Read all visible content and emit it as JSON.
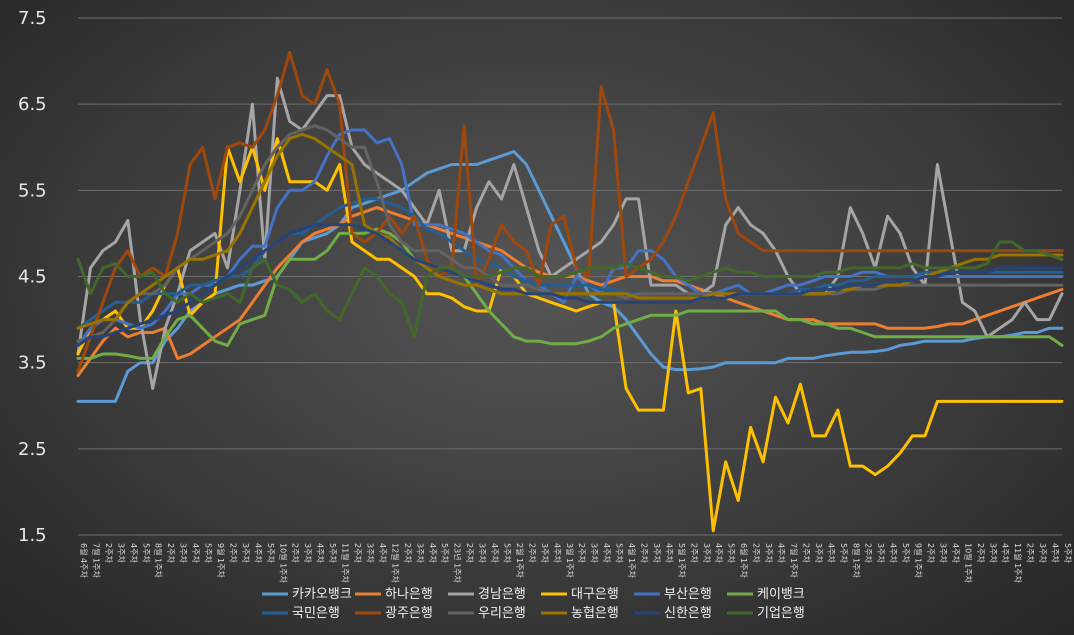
{
  "chart_data": {
    "type": "line",
    "title": "",
    "xlabel": "",
    "ylabel": "",
    "ylim": [
      1.5,
      7.5
    ],
    "yticks": [
      1.5,
      2.5,
      3.5,
      4.5,
      5.5,
      6.5,
      7.5
    ],
    "grid": true,
    "legend_position": "bottom",
    "x_labels": [
      "6월 4주차",
      "7월 1주차",
      "2주차",
      "3주차",
      "4주차",
      "5주차",
      "8월 1주차",
      "2주차",
      "3주차",
      "4주차",
      "5주차",
      "9월 1주차",
      "2주차",
      "3주차",
      "4주차",
      "5주차",
      "10월 1주차",
      "2주차",
      "3주차",
      "4주차",
      "5주차",
      "11월 1주차",
      "2주차",
      "3주차",
      "4주차",
      "12월 1주차",
      "2주차",
      "3주차",
      "4주차",
      "5주차",
      "23년 1주차",
      "2주차",
      "3주차",
      "4주차",
      "5주차",
      "2월 1주차",
      "2주차",
      "3주차",
      "4주차",
      "3월 1주차",
      "2주차",
      "3주차",
      "4주차",
      "5주차",
      "4월 1주차",
      "2주차",
      "3주차",
      "4주차",
      "5월 1주차",
      "2주차",
      "3주차",
      "4주차",
      "5주차",
      "6월 1주차",
      "2주차",
      "3주차",
      "4주차",
      "7월 1주차",
      "2주차",
      "3주차",
      "4주차",
      "5주차",
      "8월 1주차",
      "2주차",
      "3주차",
      "4주차",
      "5주차",
      "9월 1주차",
      "2주차",
      "3주차",
      "4주차",
      "10월 1주차",
      "2주차",
      "3주차",
      "4주차",
      "11월 1주차",
      "2주차",
      "3주차",
      "4주차",
      "5주차"
    ],
    "series": [
      {
        "name": "카카오뱅크",
        "color": "#5b9bd5",
        "values": [
          3.05,
          3.05,
          3.05,
          3.05,
          3.4,
          3.5,
          3.5,
          3.75,
          3.9,
          4.1,
          4.2,
          4.3,
          4.35,
          4.4,
          4.4,
          4.45,
          4.5,
          4.7,
          4.9,
          4.95,
          5.0,
          5.1,
          5.3,
          5.35,
          5.4,
          5.45,
          5.5,
          5.6,
          5.7,
          5.75,
          5.8,
          5.8,
          5.8,
          5.85,
          5.9,
          5.95,
          5.8,
          5.5,
          5.2,
          4.9,
          4.6,
          4.3,
          4.2,
          4.15,
          4.0,
          3.8,
          3.6,
          3.45,
          3.42,
          3.42,
          3.43,
          3.45,
          3.5,
          3.5,
          3.5,
          3.5,
          3.5,
          3.55,
          3.55,
          3.55,
          3.58,
          3.6,
          3.62,
          3.62,
          3.63,
          3.65,
          3.7,
          3.72,
          3.75,
          3.75,
          3.75,
          3.75,
          3.78,
          3.8,
          3.8,
          3.82,
          3.85,
          3.85,
          3.9,
          3.9
        ]
      },
      {
        "name": "하나은행",
        "color": "#ed7d31",
        "values": [
          3.35,
          3.55,
          3.75,
          3.9,
          3.8,
          3.85,
          3.85,
          3.9,
          3.55,
          3.6,
          3.7,
          3.8,
          3.9,
          4.0,
          4.2,
          4.4,
          4.6,
          4.75,
          4.9,
          5.0,
          5.05,
          5.1,
          5.2,
          5.25,
          5.3,
          5.25,
          5.2,
          5.15,
          5.1,
          5.05,
          5.0,
          4.95,
          4.9,
          4.85,
          4.8,
          4.7,
          4.6,
          4.55,
          4.5,
          4.5,
          4.5,
          4.45,
          4.4,
          4.45,
          4.5,
          4.5,
          4.5,
          4.45,
          4.45,
          4.4,
          4.35,
          4.3,
          4.25,
          4.2,
          4.15,
          4.1,
          4.05,
          4.0,
          4.0,
          4.0,
          3.95,
          3.95,
          3.95,
          3.95,
          3.95,
          3.9,
          3.9,
          3.9,
          3.9,
          3.92,
          3.95,
          3.95,
          4.0,
          4.05,
          4.1,
          4.15,
          4.2,
          4.25,
          4.3,
          4.35
        ]
      },
      {
        "name": "경남은행",
        "color": "#a5a5a5",
        "values": [
          3.6,
          4.6,
          4.8,
          4.9,
          5.15,
          4.0,
          3.2,
          3.9,
          4.3,
          4.8,
          4.9,
          5.0,
          4.6,
          5.5,
          6.5,
          4.7,
          6.8,
          6.3,
          6.2,
          6.4,
          6.6,
          6.6,
          6.0,
          5.8,
          5.7,
          5.6,
          5.5,
          5.3,
          5.1,
          5.5,
          4.8,
          4.8,
          5.3,
          5.6,
          5.4,
          5.8,
          5.3,
          4.8,
          4.5,
          4.6,
          4.7,
          4.8,
          4.9,
          5.1,
          5.4,
          5.4,
          4.4,
          4.4,
          4.4,
          4.3,
          4.3,
          4.4,
          5.1,
          5.3,
          5.1,
          5.0,
          4.8,
          4.5,
          4.3,
          4.3,
          4.3,
          4.5,
          5.3,
          5.0,
          4.6,
          5.2,
          5.0,
          4.6,
          4.4,
          5.8,
          5.0,
          4.2,
          4.1,
          3.8,
          3.9,
          4.0,
          4.2,
          4.0,
          4.0,
          4.3
        ]
      },
      {
        "name": "대구은행",
        "color": "#ffc000",
        "values": [
          3.6,
          3.9,
          4.0,
          4.1,
          3.9,
          3.9,
          4.1,
          4.4,
          4.6,
          4.05,
          4.2,
          4.3,
          6.0,
          5.6,
          6.0,
          5.5,
          6.1,
          5.6,
          5.6,
          5.6,
          5.5,
          5.8,
          4.9,
          4.8,
          4.7,
          4.7,
          4.6,
          4.5,
          4.3,
          4.3,
          4.25,
          4.15,
          4.1,
          4.1,
          4.6,
          4.5,
          4.3,
          4.25,
          4.2,
          4.15,
          4.1,
          4.15,
          4.2,
          4.2,
          3.2,
          2.95,
          2.95,
          2.95,
          4.1,
          3.15,
          3.2,
          1.55,
          2.35,
          1.9,
          2.75,
          2.35,
          3.1,
          2.8,
          3.25,
          2.65,
          2.65,
          2.95,
          2.3,
          2.3,
          2.2,
          2.3,
          2.45,
          2.65,
          2.65,
          3.05,
          3.05,
          3.05,
          3.05,
          3.05,
          3.05,
          3.05,
          3.05,
          3.05,
          3.05,
          3.05
        ]
      },
      {
        "name": "부산은행",
        "color": "#4472c4",
        "values": [
          3.7,
          3.9,
          4.0,
          4.0,
          3.95,
          3.9,
          3.95,
          4.1,
          4.3,
          4.3,
          4.4,
          4.4,
          4.5,
          4.7,
          4.85,
          4.85,
          5.3,
          5.5,
          5.5,
          5.6,
          5.9,
          6.15,
          6.2,
          6.2,
          6.05,
          6.1,
          5.8,
          5.1,
          5.1,
          5.1,
          5.05,
          5.0,
          4.9,
          4.8,
          4.75,
          4.6,
          4.45,
          4.4,
          4.3,
          4.2,
          4.5,
          4.4,
          4.3,
          4.6,
          4.6,
          4.8,
          4.8,
          4.7,
          4.5,
          4.4,
          4.3,
          4.3,
          4.35,
          4.4,
          4.3,
          4.3,
          4.35,
          4.4,
          4.4,
          4.45,
          4.5,
          4.5,
          4.5,
          4.55,
          4.55,
          4.5,
          4.5,
          4.5,
          4.5,
          4.5,
          4.5,
          4.5,
          4.5,
          4.5,
          4.5,
          4.5,
          4.5,
          4.5,
          4.5,
          4.5
        ]
      },
      {
        "name": "케이뱅크",
        "color": "#70ad47",
        "values": [
          3.55,
          3.55,
          3.6,
          3.6,
          3.58,
          3.55,
          3.55,
          3.8,
          4.0,
          4.05,
          3.9,
          3.75,
          3.7,
          3.95,
          4.0,
          4.05,
          4.5,
          4.7,
          4.7,
          4.7,
          4.8,
          5.0,
          5.0,
          5.0,
          5.05,
          5.0,
          4.9,
          4.7,
          4.65,
          4.6,
          4.6,
          4.5,
          4.3,
          4.1,
          3.95,
          3.8,
          3.75,
          3.75,
          3.72,
          3.72,
          3.72,
          3.75,
          3.8,
          3.9,
          3.95,
          4.0,
          4.05,
          4.05,
          4.05,
          4.1,
          4.1,
          4.1,
          4.1,
          4.1,
          4.1,
          4.1,
          4.1,
          4.0,
          4.0,
          3.95,
          3.95,
          3.9,
          3.9,
          3.85,
          3.8,
          3.8,
          3.8,
          3.8,
          3.8,
          3.8,
          3.8,
          3.8,
          3.8,
          3.8,
          3.8,
          3.8,
          3.8,
          3.8,
          3.8,
          3.7
        ]
      },
      {
        "name": "국민은행",
        "color": "#255e91",
        "values": [
          3.9,
          4.0,
          4.1,
          4.2,
          4.2,
          4.2,
          4.3,
          4.3,
          4.3,
          4.4,
          4.4,
          4.45,
          4.5,
          4.5,
          4.6,
          4.8,
          4.9,
          5.0,
          5.0,
          5.1,
          5.2,
          5.3,
          5.35,
          5.4,
          5.4,
          5.35,
          5.3,
          5.2,
          5.05,
          5.0,
          4.9,
          4.8,
          4.7,
          4.65,
          4.6,
          4.5,
          4.45,
          4.4,
          4.4,
          4.4,
          4.4,
          4.4,
          4.35,
          4.35,
          4.3,
          4.3,
          4.3,
          4.3,
          4.3,
          4.3,
          4.3,
          4.3,
          4.3,
          4.3,
          4.3,
          4.3,
          4.3,
          4.3,
          4.35,
          4.35,
          4.4,
          4.4,
          4.45,
          4.45,
          4.5,
          4.5,
          4.5,
          4.5,
          4.55,
          4.55,
          4.55,
          4.55,
          4.55,
          4.55,
          4.55,
          4.55,
          4.55,
          4.55,
          4.55,
          4.55
        ]
      },
      {
        "name": "광주은행",
        "color": "#9e480e",
        "values": [
          3.4,
          3.8,
          4.2,
          4.6,
          4.8,
          4.5,
          4.6,
          4.5,
          5.0,
          5.8,
          6.0,
          5.4,
          6.0,
          6.05,
          6.0,
          6.2,
          6.6,
          7.1,
          6.6,
          6.5,
          6.9,
          6.5,
          5.0,
          4.9,
          5.0,
          5.2,
          5.0,
          5.2,
          4.7,
          4.5,
          4.6,
          6.25,
          4.4,
          4.7,
          5.1,
          4.9,
          4.8,
          4.4,
          5.1,
          5.2,
          4.6,
          4.5,
          6.7,
          6.2,
          4.5,
          4.6,
          4.7,
          4.9,
          5.2,
          5.6,
          6.0,
          6.4,
          5.4,
          5.0,
          4.9,
          4.8,
          4.8,
          4.8,
          4.8,
          4.8,
          4.8,
          4.8,
          4.8,
          4.8,
          4.8,
          4.8,
          4.8,
          4.8,
          4.8,
          4.8,
          4.8,
          4.8,
          4.8,
          4.8,
          4.8,
          4.8,
          4.8,
          4.8,
          4.8,
          4.8
        ]
      },
      {
        "name": "우리은행",
        "color": "#636363",
        "values": [
          3.75,
          3.8,
          3.85,
          4.0,
          4.2,
          4.3,
          4.3,
          4.4,
          4.6,
          4.7,
          4.8,
          4.9,
          5.0,
          5.2,
          5.5,
          5.8,
          6.0,
          6.15,
          6.2,
          6.25,
          6.2,
          6.1,
          6.0,
          6.0,
          5.6,
          5.1,
          4.9,
          4.8,
          4.8,
          4.8,
          4.7,
          4.6,
          4.6,
          4.5,
          4.4,
          4.4,
          4.4,
          4.35,
          4.3,
          4.3,
          4.3,
          4.3,
          4.3,
          4.3,
          4.25,
          4.3,
          4.3,
          4.3,
          4.3,
          4.3,
          4.3,
          4.3,
          4.3,
          4.3,
          4.3,
          4.3,
          4.3,
          4.3,
          4.3,
          4.3,
          4.3,
          4.3,
          4.35,
          4.35,
          4.35,
          4.4,
          4.4,
          4.4,
          4.4,
          4.4,
          4.4,
          4.4,
          4.4,
          4.4,
          4.4,
          4.4,
          4.4,
          4.4,
          4.4,
          4.4
        ]
      },
      {
        "name": "농협은행",
        "color": "#997300",
        "values": [
          3.9,
          3.95,
          4.0,
          4.0,
          4.2,
          4.3,
          4.4,
          4.5,
          4.6,
          4.7,
          4.7,
          4.75,
          4.8,
          5.0,
          5.3,
          5.6,
          5.9,
          6.1,
          6.15,
          6.1,
          6.0,
          5.9,
          5.8,
          5.1,
          5.0,
          4.95,
          4.8,
          4.7,
          4.6,
          4.5,
          4.45,
          4.4,
          4.4,
          4.35,
          4.3,
          4.3,
          4.3,
          4.3,
          4.3,
          4.3,
          4.3,
          4.3,
          4.3,
          4.3,
          4.3,
          4.25,
          4.25,
          4.25,
          4.25,
          4.25,
          4.25,
          4.3,
          4.3,
          4.3,
          4.3,
          4.3,
          4.3,
          4.3,
          4.3,
          4.3,
          4.3,
          4.35,
          4.35,
          4.4,
          4.4,
          4.4,
          4.4,
          4.45,
          4.5,
          4.55,
          4.6,
          4.65,
          4.7,
          4.7,
          4.75,
          4.75,
          4.75,
          4.75,
          4.75,
          4.75
        ]
      },
      {
        "name": "신한은행",
        "color": "#264478",
        "values": [
          3.7,
          3.8,
          3.8,
          3.85,
          3.9,
          3.95,
          4.0,
          4.05,
          4.1,
          4.2,
          4.3,
          4.4,
          4.5,
          4.6,
          4.7,
          4.8,
          4.9,
          5.0,
          5.05,
          5.1,
          5.1,
          5.1,
          5.1,
          5.05,
          5.0,
          4.9,
          4.8,
          4.7,
          4.65,
          4.6,
          4.55,
          4.5,
          4.45,
          4.4,
          4.35,
          4.35,
          4.3,
          4.3,
          4.3,
          4.25,
          4.25,
          4.2,
          4.2,
          4.2,
          4.2,
          4.2,
          4.2,
          4.2,
          4.2,
          4.2,
          4.25,
          4.25,
          4.25,
          4.3,
          4.3,
          4.3,
          4.3,
          4.3,
          4.3,
          4.35,
          4.35,
          4.35,
          4.4,
          4.4,
          4.4,
          4.45,
          4.45,
          4.45,
          4.5,
          4.5,
          4.55,
          4.55,
          4.55,
          4.55,
          4.6,
          4.6,
          4.6,
          4.6,
          4.6,
          4.6
        ]
      },
      {
        "name": "기업은행",
        "color": "#43682b",
        "values": [
          4.7,
          4.3,
          4.6,
          4.65,
          4.5,
          4.5,
          4.55,
          4.3,
          4.2,
          4.3,
          4.2,
          4.25,
          4.3,
          4.2,
          4.6,
          4.7,
          4.4,
          4.35,
          4.2,
          4.3,
          4.1,
          4.0,
          4.3,
          4.6,
          4.5,
          4.3,
          4.2,
          3.8,
          4.5,
          4.6,
          4.6,
          4.5,
          4.5,
          4.5,
          4.55,
          4.6,
          4.6,
          4.5,
          4.5,
          4.5,
          4.55,
          4.6,
          4.6,
          4.6,
          4.65,
          4.6,
          4.55,
          4.5,
          4.5,
          4.45,
          4.5,
          4.55,
          4.6,
          4.55,
          4.55,
          4.5,
          4.5,
          4.5,
          4.5,
          4.5,
          4.55,
          4.55,
          4.6,
          4.6,
          4.6,
          4.6,
          4.6,
          4.65,
          4.6,
          4.6,
          4.6,
          4.6,
          4.6,
          4.65,
          4.9,
          4.9,
          4.8,
          4.8,
          4.75,
          4.7
        ]
      }
    ]
  }
}
